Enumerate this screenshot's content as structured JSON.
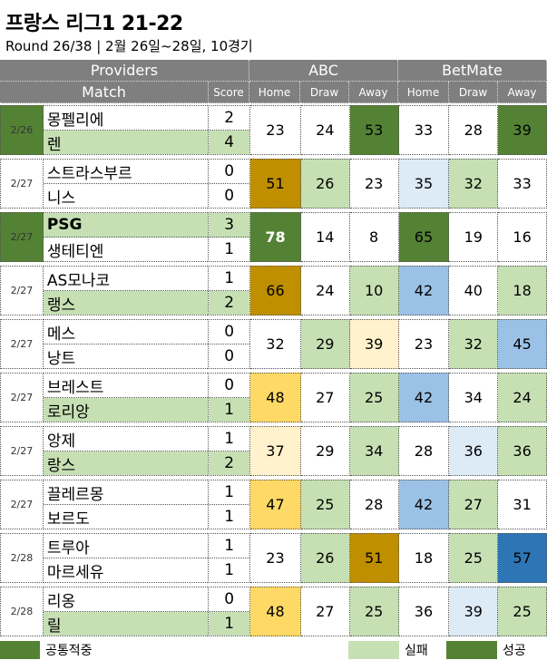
{
  "title": "프랑스 리그1 21-22",
  "subtitle": "Round 26/38  | 2월 26일~28일, 10경기",
  "header": {
    "providers": "Providers",
    "match": "Match",
    "score": "Score",
    "groups": [
      "ABC",
      "BetMate"
    ],
    "cols": [
      "Home",
      "Draw",
      "Away",
      "Home",
      "Draw",
      "Away"
    ]
  },
  "colors": {
    "dark_green": "#548235",
    "light_green": "#c6e0b4",
    "gold": "#bf8f00",
    "yellow": "#ffd966",
    "pale_yellow": "#fff2cc",
    "pale_blue": "#ddebf7",
    "mid_blue": "#9bc2e6",
    "dark_blue": "#2e75b6",
    "header_gray": "#7f7f7f"
  },
  "matches": [
    {
      "date": "2/26",
      "home": "몽펠리에",
      "away": "렌",
      "hs": "2",
      "as": "4",
      "odds": [
        "23",
        "24",
        "53",
        "33",
        "28",
        "39"
      ],
      "date_bg": "dark_green",
      "home_bg": "",
      "away_bg": "light_green",
      "bg": [
        "",
        "",
        "dark_green",
        "",
        "",
        "dark_green"
      ],
      "bold": [
        false,
        false,
        false,
        false,
        false,
        false
      ]
    },
    {
      "date": "2/27",
      "home": "스트라스부르",
      "away": "니스",
      "hs": "0",
      "as": "0",
      "odds": [
        "51",
        "26",
        "23",
        "35",
        "32",
        "33"
      ],
      "date_bg": "",
      "home_bg": "",
      "away_bg": "",
      "bg": [
        "gold",
        "light_green",
        "",
        "pale_blue",
        "light_green",
        ""
      ],
      "bold": [
        false,
        false,
        false,
        false,
        false,
        false
      ]
    },
    {
      "date": "2/27",
      "home": "PSG",
      "away": "생테티엔",
      "hs": "3",
      "as": "1",
      "odds": [
        "78",
        "14",
        "8",
        "65",
        "19",
        "16"
      ],
      "date_bg": "dark_green",
      "home_bg": "light_green",
      "away_bg": "",
      "bg": [
        "dark_green",
        "",
        "",
        "dark_green",
        "",
        ""
      ],
      "bold": [
        true,
        false,
        false,
        false,
        false,
        false
      ],
      "home_bold": true
    },
    {
      "date": "2/27",
      "home": "AS모나코",
      "away": "랭스",
      "hs": "1",
      "as": "2",
      "odds": [
        "66",
        "24",
        "10",
        "42",
        "40",
        "18"
      ],
      "date_bg": "",
      "home_bg": "",
      "away_bg": "light_green",
      "bg": [
        "gold",
        "",
        "light_green",
        "mid_blue",
        "",
        "light_green"
      ],
      "bold": [
        false,
        false,
        false,
        false,
        false,
        false
      ],
      "home_bold_prefix": true
    },
    {
      "date": "2/27",
      "home": "메스",
      "away": "낭트",
      "hs": "0",
      "as": "0",
      "odds": [
        "32",
        "29",
        "39",
        "23",
        "32",
        "45"
      ],
      "date_bg": "",
      "home_bg": "",
      "away_bg": "",
      "bg": [
        "",
        "light_green",
        "pale_yellow",
        "",
        "light_green",
        "mid_blue"
      ],
      "bold": [
        false,
        false,
        false,
        false,
        false,
        false
      ]
    },
    {
      "date": "2/27",
      "home": "브레스트",
      "away": "로리앙",
      "hs": "0",
      "as": "1",
      "odds": [
        "48",
        "27",
        "25",
        "42",
        "34",
        "24"
      ],
      "date_bg": "",
      "home_bg": "",
      "away_bg": "light_green",
      "bg": [
        "yellow",
        "",
        "light_green",
        "mid_blue",
        "",
        "light_green"
      ],
      "bold": [
        false,
        false,
        false,
        false,
        false,
        false
      ]
    },
    {
      "date": "2/27",
      "home": "앙제",
      "away": "랑스",
      "hs": "1",
      "as": "2",
      "odds": [
        "37",
        "29",
        "34",
        "28",
        "36",
        "36"
      ],
      "date_bg": "",
      "home_bg": "",
      "away_bg": "light_green",
      "bg": [
        "pale_yellow",
        "",
        "light_green",
        "",
        "pale_blue",
        "light_green"
      ],
      "bold": [
        false,
        false,
        false,
        false,
        false,
        false
      ]
    },
    {
      "date": "2/27",
      "home": "끌레르몽",
      "away": "보르도",
      "hs": "1",
      "as": "1",
      "odds": [
        "47",
        "25",
        "28",
        "42",
        "27",
        "31"
      ],
      "date_bg": "",
      "home_bg": "",
      "away_bg": "",
      "bg": [
        "yellow",
        "light_green",
        "",
        "mid_blue",
        "light_green",
        ""
      ],
      "bold": [
        false,
        false,
        false,
        false,
        false,
        false
      ]
    },
    {
      "date": "2/28",
      "home": "트루아",
      "away": "마르세유",
      "hs": "1",
      "as": "1",
      "odds": [
        "23",
        "26",
        "51",
        "18",
        "25",
        "57"
      ],
      "date_bg": "",
      "home_bg": "",
      "away_bg": "",
      "bg": [
        "",
        "light_green",
        "gold",
        "",
        "light_green",
        "dark_blue"
      ],
      "bold": [
        false,
        false,
        false,
        false,
        false,
        false
      ]
    },
    {
      "date": "2/28",
      "home": "리옹",
      "away": "릴",
      "hs": "0",
      "as": "1",
      "odds": [
        "48",
        "27",
        "25",
        "36",
        "39",
        "25"
      ],
      "date_bg": "",
      "home_bg": "",
      "away_bg": "light_green",
      "bg": [
        "yellow",
        "",
        "light_green",
        "",
        "pale_blue",
        "light_green"
      ],
      "bold": [
        false,
        false,
        false,
        false,
        false,
        false
      ]
    }
  ],
  "legend": [
    {
      "label": "공통적중",
      "color": "dark_green"
    },
    {
      "label": "실패",
      "color": "light_green"
    },
    {
      "label": "성공",
      "color": "dark_green"
    }
  ]
}
